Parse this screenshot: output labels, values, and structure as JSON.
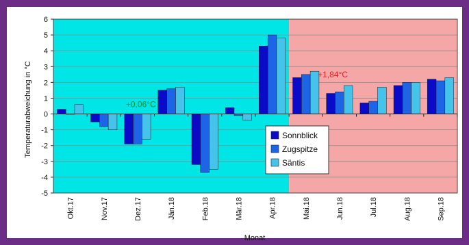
{
  "chart_data": {
    "type": "bar",
    "ylabel": "Temperaturabweichung in °C",
    "xlabel": "Monat",
    "ylim": [
      -5,
      6
    ],
    "yticks": [
      -5,
      -4,
      -3,
      -2,
      -1,
      0,
      1,
      2,
      3,
      4,
      5,
      6
    ],
    "grid": true,
    "legend_position": "center-right",
    "categories": [
      "Okt.17",
      "Nov.17",
      "Dez.17",
      "Jän.18",
      "Feb.18",
      "Mär.18",
      "Apr.18",
      "Mai.18",
      "Jun.18",
      "Jul.18",
      "Aug.18",
      "Sep.18"
    ],
    "series": [
      {
        "name": "Sonnblick",
        "color": "#0a0ac8",
        "values": [
          0.3,
          -0.5,
          -1.9,
          1.5,
          -3.2,
          0.4,
          4.3,
          2.3,
          1.3,
          0.7,
          1.8,
          2.2
        ]
      },
      {
        "name": "Zugspitze",
        "color": "#1e64e6",
        "values": [
          0.0,
          -0.8,
          -1.9,
          1.6,
          -3.7,
          -0.1,
          5.0,
          2.5,
          1.4,
          0.8,
          2.0,
          2.1
        ]
      },
      {
        "name": "Säntis",
        "color": "#46c3eb",
        "values": [
          0.6,
          -1.0,
          -1.6,
          1.7,
          -3.5,
          -0.4,
          4.8,
          2.7,
          1.8,
          1.7,
          2.0,
          2.3
        ]
      }
    ],
    "periods": [
      {
        "label": "+0,06°C",
        "from": 0,
        "to": 6,
        "color": "#00e5e5",
        "label_color": "#1f8f3a",
        "label_value": 0.6
      },
      {
        "label": "+1,84°C",
        "from": 7,
        "to": 11,
        "color": "#f5a6a6",
        "label_color": "#e02020",
        "label_value": 2.5
      }
    ]
  }
}
